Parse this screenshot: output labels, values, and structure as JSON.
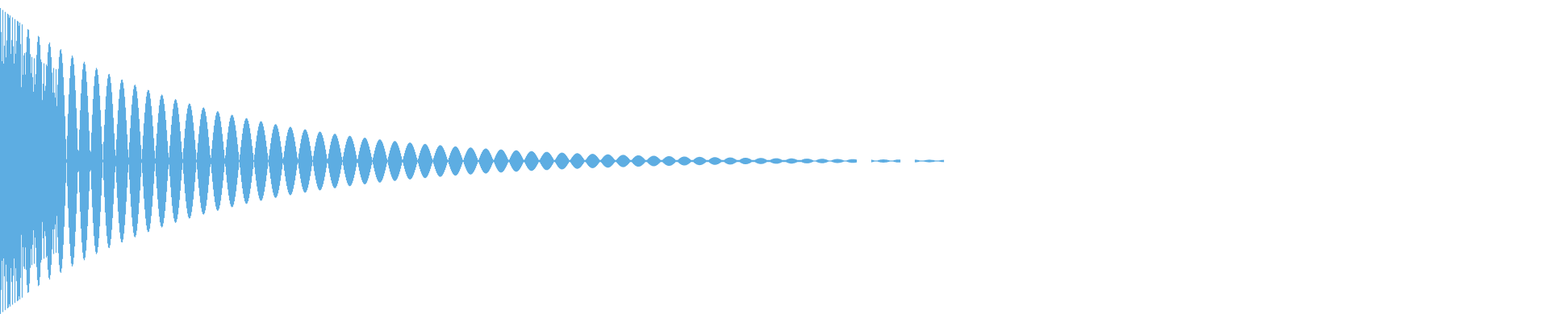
{
  "chart_data": {
    "type": "area",
    "title": "",
    "xlabel": "",
    "ylabel": "",
    "grid": false,
    "legend": "none",
    "series": [
      {
        "kind": "decaying-oscillation-waveform",
        "color": "#5DADE2",
        "peak_amplitude": 1.0,
        "decay": "exponential"
      }
    ]
  }
}
